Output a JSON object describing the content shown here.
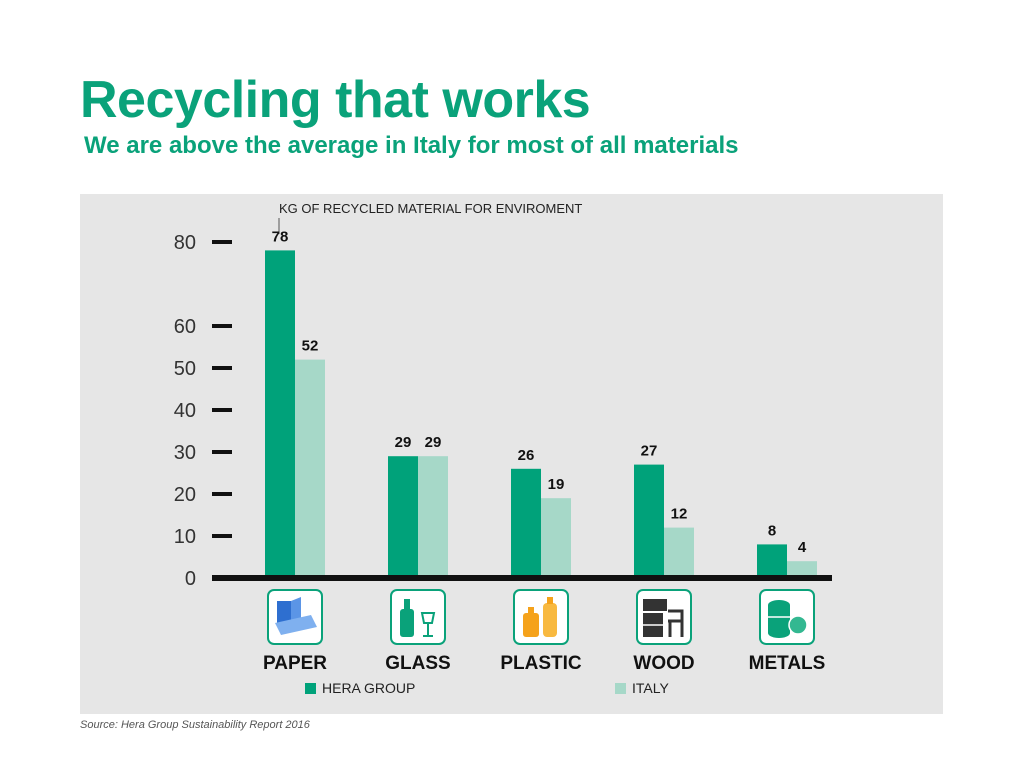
{
  "title": "Recycling that works",
  "subtitle": "We are above the average in Italy for most of all materials",
  "source": "Source: Hera Group Sustainability Report 2016",
  "colors": {
    "hera": "#00a27a",
    "italy": "#a6d8c8",
    "accent": "#0aa27a"
  },
  "chart_data": {
    "type": "bar",
    "title": "",
    "annotation": "KG OF RECYCLED MATERIAL FOR ENVIROMENT",
    "categories": [
      "PAPER",
      "GLASS",
      "PLASTIC",
      "WOOD",
      "METALS"
    ],
    "category_icons": [
      "paper-carton-icon",
      "glass-bottle-icon",
      "plastic-bottles-icon",
      "wood-furniture-icon",
      "metal-cans-icon"
    ],
    "series": [
      {
        "name": "HERA GROUP",
        "values": [
          78,
          29,
          26,
          27,
          8
        ]
      },
      {
        "name": "ITALY",
        "values": [
          52,
          29,
          19,
          12,
          4
        ]
      }
    ],
    "yticks": [
      0,
      10,
      20,
      30,
      40,
      50,
      60,
      80
    ],
    "ylim": [
      0,
      80
    ],
    "legend_position": "bottom",
    "grid": false
  }
}
